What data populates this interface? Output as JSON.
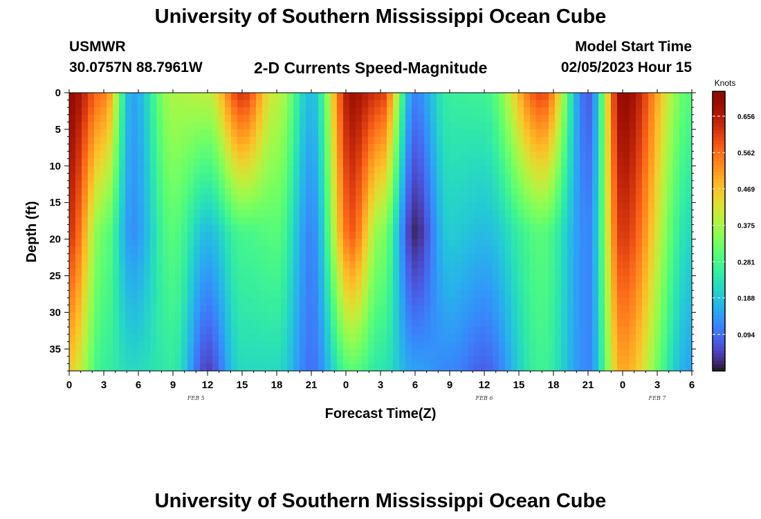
{
  "page": {
    "title": "University of Southern Mississippi Ocean Cube",
    "footer_title": "University of Southern Mississippi Ocean Cube",
    "station_id": "USMWR",
    "station_coords": "30.0757N  88.7961W",
    "chart_title": "2-D Currents Speed-Magnitude",
    "model_label": "Model Start Time",
    "model_time": "02/05/2023 Hour 15"
  },
  "chart_data": {
    "type": "heatmap",
    "title": "2-D Currents Speed-Magnitude",
    "xlabel": "Forecast Time(Z)",
    "ylabel": "Depth (ft)",
    "x_ticks": [
      "0",
      "3",
      "6",
      "9",
      "12",
      "15",
      "18",
      "21",
      "0",
      "3",
      "6",
      "9",
      "12",
      "15",
      "18",
      "21",
      "0",
      "3",
      "6"
    ],
    "x_range_hours": [
      0,
      54
    ],
    "y_ticks": [
      0,
      5,
      10,
      15,
      20,
      25,
      30,
      35
    ],
    "y_range": [
      0,
      38
    ],
    "y_inverted": true,
    "dates": [
      {
        "label": "FEB 5",
        "hour": 11
      },
      {
        "label": "FEB 6",
        "hour": 36
      },
      {
        "label": "FEB 7",
        "hour": 51
      }
    ],
    "colorbar": {
      "units": "Knots",
      "min": 0.0,
      "max": 0.72,
      "ticks": [
        "0.656",
        "0.562",
        "0.469",
        "0.375",
        "0.281",
        "0.188",
        "0.094"
      ],
      "tick_values": [
        0.656,
        0.562,
        0.469,
        0.375,
        0.281,
        0.188,
        0.094
      ],
      "colormap": "turbo"
    },
    "speed_structure": [
      {
        "hour": 0,
        "surface": 0.7,
        "mid": 0.62,
        "bottom": 0.45
      },
      {
        "hour": 3,
        "surface": 0.55,
        "mid": 0.32,
        "bottom": 0.26
      },
      {
        "hour": 5.5,
        "surface": 0.15,
        "mid": 0.13,
        "bottom": 0.22
      },
      {
        "hour": 9,
        "surface": 0.38,
        "mid": 0.3,
        "bottom": 0.25
      },
      {
        "hour": 12,
        "surface": 0.4,
        "mid": 0.18,
        "bottom": 0.05
      },
      {
        "hour": 15,
        "surface": 0.62,
        "mid": 0.28,
        "bottom": 0.22
      },
      {
        "hour": 18,
        "surface": 0.4,
        "mid": 0.3,
        "bottom": 0.22
      },
      {
        "hour": 21,
        "surface": 0.18,
        "mid": 0.12,
        "bottom": 0.1
      },
      {
        "hour": 24.5,
        "surface": 0.68,
        "mid": 0.58,
        "bottom": 0.3
      },
      {
        "hour": 27,
        "surface": 0.62,
        "mid": 0.35,
        "bottom": 0.24
      },
      {
        "hour": 30,
        "surface": 0.12,
        "mid": 0.02,
        "bottom": 0.15
      },
      {
        "hour": 33,
        "surface": 0.26,
        "mid": 0.2,
        "bottom": 0.12
      },
      {
        "hour": 36,
        "surface": 0.27,
        "mid": 0.18,
        "bottom": 0.08
      },
      {
        "hour": 41,
        "surface": 0.6,
        "mid": 0.3,
        "bottom": 0.27
      },
      {
        "hour": 45,
        "surface": 0.08,
        "mid": 0.12,
        "bottom": 0.12
      },
      {
        "hour": 48,
        "surface": 0.7,
        "mid": 0.62,
        "bottom": 0.5
      },
      {
        "hour": 54,
        "surface": 0.3,
        "mid": 0.22,
        "bottom": 0.15
      }
    ]
  }
}
